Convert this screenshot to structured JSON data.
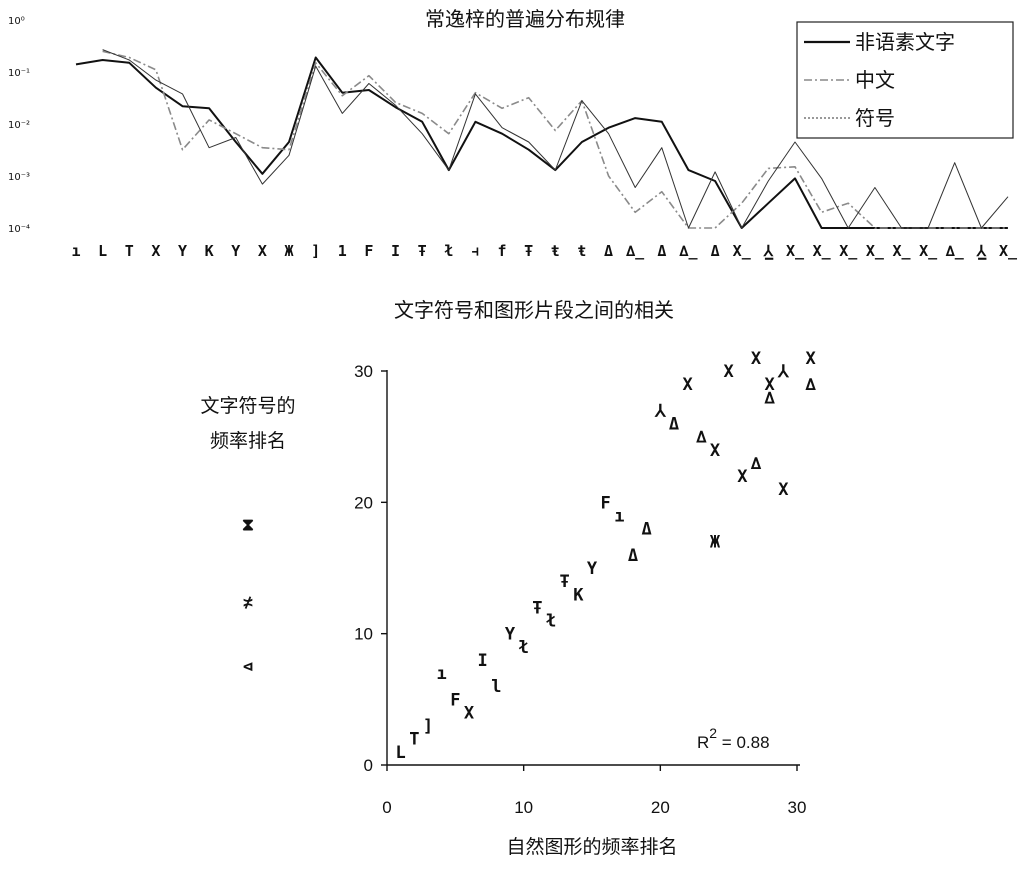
{
  "chart_data": [
    {
      "type": "line",
      "title": "常逸梓的普遍分布规律",
      "y_scale": "log",
      "ylim": [
        0.0001,
        1
      ],
      "y_ticks": [
        "10⁰",
        "10⁻¹",
        "10⁻²",
        "10⁻³",
        "10⁻⁴"
      ],
      "categories": [
        "ı",
        "L",
        "T",
        "X",
        "Y",
        "K",
        "Y",
        "X",
        "Ж",
        "]",
        "1",
        "F",
        "I",
        "Ŧ",
        "ł",
        "⫞",
        "f",
        "Ŧ",
        "ŧ",
        "ŧ",
        "Δ",
        "∆̲",
        "Δ",
        "∆̲",
        "Δ",
        "X̲",
        "⅄̲",
        "X̲",
        "X̲",
        "X̲",
        "X̲",
        "X̲",
        "X̲",
        "∆̲",
        "⅄̲",
        "X̲"
      ],
      "legend": {
        "position": "top-right",
        "entries": [
          "非语素文字",
          "中文",
          "符号"
        ]
      },
      "series": [
        {
          "name": "非语素文字",
          "style": "solid",
          "values": [
            0.14,
            0.17,
            0.15,
            0.05,
            0.022,
            0.02,
            0.0045,
            0.0011,
            0.0045,
            0.19,
            0.04,
            0.045,
            0.021,
            0.011,
            0.0013,
            0.011,
            0.0065,
            0.0032,
            0.0013,
            0.0045,
            0.0085,
            0.013,
            0.011,
            0.0013,
            0.0008,
            0.0001,
            0.0003,
            0.0009,
            0.0001,
            0.0001,
            0.0001,
            0.0001,
            0.0001,
            0.0001,
            0.0001,
            0.0001
          ]
        },
        {
          "name": "中文",
          "style": "dashdot",
          "values": [
            null,
            0.25,
            0.19,
            0.11,
            0.0032,
            0.012,
            0.0065,
            0.0035,
            0.0032,
            0.15,
            0.035,
            0.085,
            0.026,
            0.016,
            0.0065,
            0.04,
            0.02,
            0.032,
            0.0075,
            0.028,
            0.001,
            0.0002,
            0.0005,
            0.0001,
            0.0001,
            0.0003,
            0.0014,
            0.0015,
            0.0002,
            0.0003,
            0.0001,
            0.0001,
            0.0001,
            0.0001,
            0.0001,
            0.0001
          ]
        },
        {
          "name": "符号",
          "style": "thin",
          "values": [
            null,
            0.27,
            0.17,
            0.07,
            0.038,
            0.0035,
            0.0055,
            0.0007,
            0.0025,
            0.13,
            0.016,
            0.06,
            0.023,
            0.0065,
            0.0013,
            0.038,
            0.0085,
            0.0045,
            0.0013,
            0.028,
            0.0065,
            0.0006,
            0.0035,
            0.0001,
            0.0012,
            0.0001,
            0.0008,
            0.0045,
            0.0009,
            0.0001,
            0.0006,
            0.0001,
            0.0001,
            0.0018,
            0.0001,
            0.0004
          ]
        }
      ]
    },
    {
      "type": "scatter",
      "title": "文字符号和图形片段之间的相关",
      "xlabel": "自然图形的频率排名",
      "ylabel": [
        "文字符号的",
        "频率排名"
      ],
      "xlim": [
        0,
        30
      ],
      "ylim": [
        0,
        30
      ],
      "x_ticks": [
        "0",
        "10",
        "20",
        "30"
      ],
      "y_ticks": [
        "0",
        "10",
        "20",
        "30"
      ],
      "annotation": {
        "text": "R",
        "sup": "2",
        "rest": " = 0.88"
      },
      "legend_glyphs": [
        "⧗",
        "≭",
        "⊲"
      ],
      "points": [
        {
          "x": 1,
          "y": 1,
          "m": "L"
        },
        {
          "x": 2,
          "y": 2,
          "m": "T"
        },
        {
          "x": 3,
          "y": 3,
          "m": "]"
        },
        {
          "x": 4,
          "y": 7,
          "m": "ı"
        },
        {
          "x": 5,
          "y": 5,
          "m": "F"
        },
        {
          "x": 6,
          "y": 4,
          "m": "X"
        },
        {
          "x": 7,
          "y": 8,
          "m": "I"
        },
        {
          "x": 8,
          "y": 6,
          "m": "l"
        },
        {
          "x": 9,
          "y": 10,
          "m": "Y"
        },
        {
          "x": 10,
          "y": 9,
          "m": "ł"
        },
        {
          "x": 11,
          "y": 12,
          "m": "Ŧ"
        },
        {
          "x": 12,
          "y": 11,
          "m": "ł"
        },
        {
          "x": 13,
          "y": 14,
          "m": "Ŧ"
        },
        {
          "x": 14,
          "y": 13,
          "m": "K"
        },
        {
          "x": 15,
          "y": 15,
          "m": "Y"
        },
        {
          "x": 16,
          "y": 20,
          "m": "F"
        },
        {
          "x": 17,
          "y": 19,
          "m": "ı"
        },
        {
          "x": 18,
          "y": 16,
          "m": "Δ"
        },
        {
          "x": 19,
          "y": 18,
          "m": "Δ"
        },
        {
          "x": 20,
          "y": 27,
          "m": "⅄"
        },
        {
          "x": 21,
          "y": 26,
          "m": "Δ"
        },
        {
          "x": 22,
          "y": 29,
          "m": "X"
        },
        {
          "x": 23,
          "y": 25,
          "m": "∆"
        },
        {
          "x": 24,
          "y": 24,
          "m": "X"
        },
        {
          "x": 24,
          "y": 17,
          "m": "Ж"
        },
        {
          "x": 25,
          "y": 30,
          "m": "X"
        },
        {
          "x": 26,
          "y": 22,
          "m": "X"
        },
        {
          "x": 27,
          "y": 31,
          "m": "X"
        },
        {
          "x": 27,
          "y": 23,
          "m": "∆"
        },
        {
          "x": 28,
          "y": 28,
          "m": "∆"
        },
        {
          "x": 28,
          "y": 29,
          "m": "X"
        },
        {
          "x": 29,
          "y": 21,
          "m": "X"
        },
        {
          "x": 29,
          "y": 30,
          "m": "⅄"
        },
        {
          "x": 31,
          "y": 31,
          "m": "X"
        },
        {
          "x": 31,
          "y": 29,
          "m": "∆"
        }
      ]
    }
  ]
}
